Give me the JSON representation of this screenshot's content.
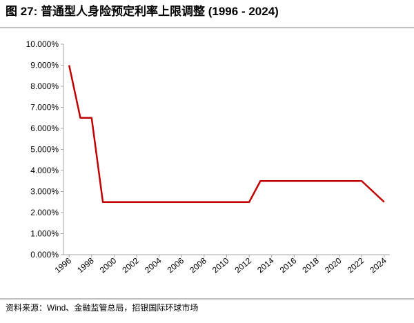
{
  "chart_data": {
    "type": "line",
    "title": "图 27: 普通型人身险预定利率上限调整 (1996 - 2024)",
    "source": "资料来源：Wind、金融监管总局，招银国际环球市场",
    "x": [
      1996,
      1997,
      1998,
      1999,
      2012,
      2013,
      2022,
      2024
    ],
    "series": [
      {
        "color": "#c00000",
        "values": [
          9,
          6.5,
          6.5,
          2.5,
          2.5,
          3.5,
          3.5,
          2.5
        ]
      }
    ],
    "xlim": [
      1995.5,
      2024.5
    ],
    "xticks": [
      1996,
      1998,
      2000,
      2002,
      2004,
      2006,
      2008,
      2010,
      2012,
      2014,
      2016,
      2018,
      2020,
      2022,
      2024
    ],
    "ylim": [
      0,
      10
    ],
    "yticks": [
      {
        "value": 0,
        "label": "0.000%"
      },
      {
        "value": 1,
        "label": "1.000%"
      },
      {
        "value": 2,
        "label": "2.000%"
      },
      {
        "value": 3,
        "label": "3.000%"
      },
      {
        "value": 4,
        "label": "4.000%"
      },
      {
        "value": 5,
        "label": "5.000%"
      },
      {
        "value": 6,
        "label": "6.000%"
      },
      {
        "value": 7,
        "label": "7.000%"
      },
      {
        "value": 8,
        "label": "8.000%"
      },
      {
        "value": 9,
        "label": "9.000%"
      },
      {
        "value": 10,
        "label": "10.000%"
      }
    ],
    "grid": false
  }
}
